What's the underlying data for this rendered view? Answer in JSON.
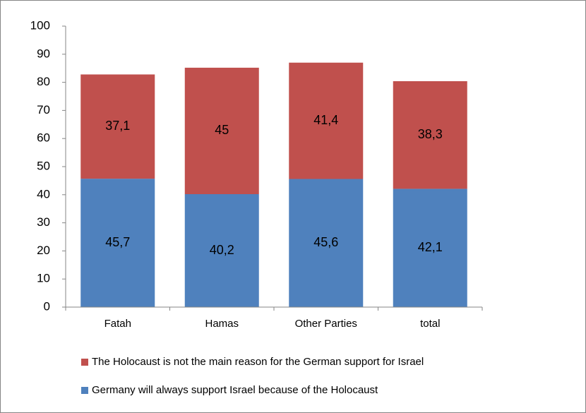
{
  "chart_data": {
    "type": "bar",
    "stacked": true,
    "categories": [
      "Fatah",
      "Hamas",
      "Other Parties",
      "total"
    ],
    "series": [
      {
        "name": "Germany will always support Israel because of the Holocaust",
        "color": "#4f81bd",
        "values": [
          45.7,
          40.2,
          45.6,
          42.1
        ],
        "value_labels": [
          "45,7",
          "40,2",
          "45,6",
          "42,1"
        ]
      },
      {
        "name": "The Holocaust is not the main reason for the German support for Israel",
        "color": "#c0504d",
        "values": [
          37.1,
          45,
          41.4,
          38.3
        ],
        "value_labels": [
          "37,1",
          "45",
          "41,4",
          "38,3"
        ]
      }
    ],
    "ylim": [
      0,
      100
    ],
    "yticks": [
      0,
      10,
      20,
      30,
      40,
      50,
      60,
      70,
      80,
      90,
      100
    ],
    "grid": false
  }
}
